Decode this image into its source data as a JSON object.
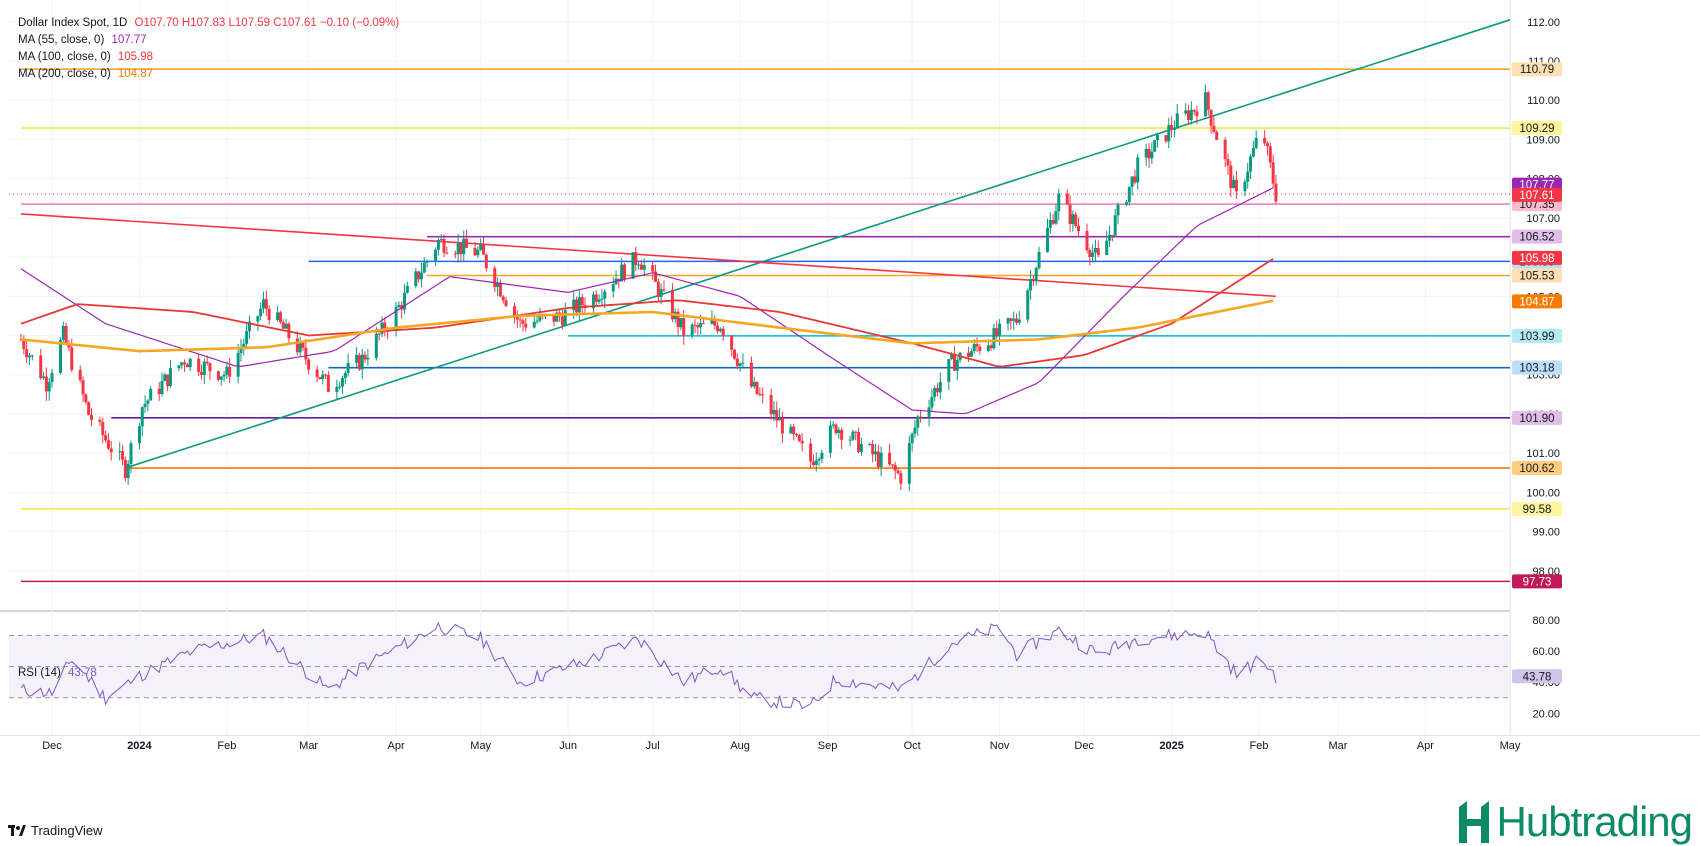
{
  "header": {
    "symbol": "Dollar Index Spot, 1D",
    "ohlc": "O107.70  H107.83  L107.59  C107.61  −0.10 (−0.09%)",
    "ma55_label": "MA (55, close, 0)",
    "ma55_value": "107.77",
    "ma100_label": "MA (100, close, 0)",
    "ma100_value": "105.98",
    "ma200_label": "MA (200, close, 0)",
    "ma200_value": "104.87",
    "rsi_label": "RSI (14)",
    "rsi_value": "43.78"
  },
  "colors": {
    "up": "#089981",
    "down": "#f23645",
    "ma55": "#9c27b0",
    "ma100": "#e53935",
    "ma200": "#f5a623",
    "rsi": "#7e57c2",
    "trend_up": "#0a9b7e",
    "trend_down": "#f23645",
    "brand": "#0d8a68"
  },
  "footer": {
    "tradingview": "TradingView",
    "brand": "Hubtrading"
  },
  "chart_data": {
    "type": "candlestick",
    "title": "Dollar Index Spot, 1D",
    "ylim": [
      97.0,
      112.3
    ],
    "y_ticks": [
      98.0,
      99.0,
      100.0,
      101.0,
      102.0,
      103.0,
      104.0,
      105.0,
      106.0,
      107.0,
      108.0,
      109.0,
      110.0,
      111.0,
      112.0
    ],
    "x_ticks": [
      "Dec",
      "2024",
      "Feb",
      "Mar",
      "Apr",
      "May",
      "Jun",
      "Jul",
      "Aug",
      "Sep",
      "Oct",
      "Nov",
      "Dec",
      "2025",
      "Feb",
      "Mar",
      "Apr",
      "May"
    ],
    "price_path": [
      [
        "2023-11-20",
        103.9
      ],
      [
        "2023-11-29",
        102.8
      ],
      [
        "2023-12-05",
        104.0
      ],
      [
        "2023-12-14",
        102.0
      ],
      [
        "2023-12-27",
        100.6
      ],
      [
        "2024-01-02",
        102.2
      ],
      [
        "2024-01-17",
        103.4
      ],
      [
        "2024-02-01",
        103.0
      ],
      [
        "2024-02-14",
        104.8
      ],
      [
        "2024-03-08",
        102.7
      ],
      [
        "2024-03-20",
        103.4
      ],
      [
        "2024-04-01",
        104.6
      ],
      [
        "2024-04-16",
        106.4
      ],
      [
        "2024-05-01",
        106.1
      ],
      [
        "2024-05-15",
        104.3
      ],
      [
        "2024-05-30",
        104.5
      ],
      [
        "2024-06-10",
        105.0
      ],
      [
        "2024-06-26",
        106.0
      ],
      [
        "2024-07-12",
        104.1
      ],
      [
        "2024-07-25",
        104.3
      ],
      [
        "2024-08-05",
        102.7
      ],
      [
        "2024-08-26",
        100.8
      ],
      [
        "2024-09-04",
        101.7
      ],
      [
        "2024-09-27",
        100.4
      ],
      [
        "2024-10-03",
        101.9
      ],
      [
        "2024-10-15",
        103.3
      ],
      [
        "2024-10-31",
        104.0
      ],
      [
        "2024-11-07",
        104.4
      ],
      [
        "2024-11-22",
        107.5
      ],
      [
        "2024-12-06",
        105.9
      ],
      [
        "2024-12-20",
        108.3
      ],
      [
        "2025-01-02",
        109.4
      ],
      [
        "2025-01-13",
        110.0
      ],
      [
        "2025-01-24",
        107.5
      ],
      [
        "2025-02-02",
        109.3
      ],
      [
        "2025-02-07",
        107.6
      ]
    ],
    "candles_by_date": [
      [
        "2025-02-07",
        107.7,
        107.83,
        107.59,
        107.61
      ]
    ],
    "moving_averages": [
      {
        "name": "MA (55, close, 0)",
        "last": 107.77,
        "points": [
          [
            "2023-11-20",
            105.7
          ],
          [
            "2023-12-20",
            104.3
          ],
          [
            "2024-02-05",
            103.2
          ],
          [
            "2024-03-10",
            103.6
          ],
          [
            "2024-04-20",
            105.5
          ],
          [
            "2024-06-01",
            105.1
          ],
          [
            "2024-07-01",
            105.6
          ],
          [
            "2024-08-01",
            105.0
          ],
          [
            "2024-09-01",
            103.5
          ],
          [
            "2024-10-01",
            102.1
          ],
          [
            "2024-10-20",
            102.0
          ],
          [
            "2024-11-15",
            102.8
          ],
          [
            "2024-12-15",
            105.0
          ],
          [
            "2025-01-10",
            106.8
          ],
          [
            "2025-02-07",
            107.8
          ]
        ]
      },
      {
        "name": "MA (100, close, 0)",
        "last": 105.98,
        "points": [
          [
            "2023-11-20",
            104.3
          ],
          [
            "2023-12-10",
            104.8
          ],
          [
            "2024-01-20",
            104.6
          ],
          [
            "2024-03-01",
            104.0
          ],
          [
            "2024-04-15",
            104.2
          ],
          [
            "2024-06-01",
            104.7
          ],
          [
            "2024-07-10",
            104.9
          ],
          [
            "2024-08-15",
            104.6
          ],
          [
            "2024-10-01",
            103.8
          ],
          [
            "2024-11-01",
            103.2
          ],
          [
            "2024-12-01",
            103.5
          ],
          [
            "2025-01-01",
            104.3
          ],
          [
            "2025-02-07",
            106.0
          ]
        ]
      },
      {
        "name": "MA (200, close, 0)",
        "last": 104.87,
        "points": [
          [
            "2023-11-20",
            103.9
          ],
          [
            "2024-01-01",
            103.6
          ],
          [
            "2024-02-15",
            103.7
          ],
          [
            "2024-04-01",
            104.2
          ],
          [
            "2024-05-15",
            104.5
          ],
          [
            "2024-07-01",
            104.6
          ],
          [
            "2024-08-15",
            104.2
          ],
          [
            "2024-10-01",
            103.8
          ],
          [
            "2024-11-15",
            103.9
          ],
          [
            "2024-12-20",
            104.2
          ],
          [
            "2025-02-07",
            104.9
          ]
        ]
      }
    ],
    "horizontal_levels": [
      {
        "value": 110.79,
        "color": "#f5a623",
        "label_color": "#ffe0b2",
        "text_color": "#131722",
        "start": "2023-11-20"
      },
      {
        "value": 109.29,
        "color": "#f2e94e",
        "label_color": "#fff59d",
        "text_color": "#131722",
        "start": "2023-11-20"
      },
      {
        "value": 107.35,
        "color": "#e879b6",
        "label_color": "#f8bbd0",
        "text_color": "#131722",
        "start": "2023-11-20"
      },
      {
        "value": 106.52,
        "color": "#9c27b0",
        "label_color": "#e1bee7",
        "text_color": "#131722",
        "start": "2024-04-12"
      },
      {
        "value": 105.89,
        "color": "#2962ff",
        "label_color": "#bbdefb",
        "text_color": "#131722",
        "start": "2024-03-01"
      },
      {
        "value": 105.53,
        "color": "#f5a623",
        "label_color": "#ffe0b2",
        "text_color": "#131722",
        "start": "2024-04-12"
      },
      {
        "value": 103.99,
        "color": "#00bcd4",
        "label_color": "#b2ebf2",
        "text_color": "#131722",
        "start": "2024-06-01"
      },
      {
        "value": 103.18,
        "color": "#1565c0",
        "label_color": "#bbdefb",
        "text_color": "#131722",
        "start": "2024-03-08"
      },
      {
        "value": 101.9,
        "color": "#6a1b9a",
        "label_color": "#e1bee7",
        "text_color": "#131722",
        "start": "2023-12-22"
      },
      {
        "value": 100.62,
        "color": "#f57c00",
        "label_color": "#ffcc80",
        "text_color": "#131722",
        "start": "2023-12-28"
      },
      {
        "value": 99.58,
        "color": "#f2e94e",
        "label_color": "#fff59d",
        "text_color": "#131722",
        "start": "2023-11-20"
      },
      {
        "value": 97.73,
        "color": "#c2185b",
        "label_color": "#c2185b",
        "text_color": "#ffffff",
        "start": "2023-11-20"
      }
    ],
    "price_tags": [
      {
        "value": 107.77,
        "color": "#9c27b0",
        "text_color": "#ffffff"
      },
      {
        "value": 107.61,
        "color": "#f23645",
        "text_color": "#ffffff"
      },
      {
        "value": 105.98,
        "color": "#f23645",
        "text_color": "#ffffff"
      },
      {
        "value": 104.87,
        "color": "#f57c00",
        "text_color": "#ffffff"
      }
    ],
    "trendlines": [
      {
        "name": "ascending",
        "from": [
          "2023-12-27",
          100.62
        ],
        "to": [
          "2025-05-01",
          112.05
        ]
      },
      {
        "name": "descending",
        "from": [
          "2023-11-20",
          107.1
        ],
        "to": [
          "2025-02-07",
          105.0
        ]
      }
    ],
    "rsi": {
      "name": "RSI (14)",
      "last": 43.78,
      "ylim": [
        17,
        85
      ],
      "y_ticks": [
        20.0,
        40.0,
        60.0,
        80.0
      ],
      "bands": [
        30,
        50,
        70
      ],
      "points": [
        [
          "2023-11-20",
          35
        ],
        [
          "2023-12-01",
          33
        ],
        [
          "2023-12-08",
          55
        ],
        [
          "2023-12-20",
          30
        ],
        [
          "2024-01-02",
          45
        ],
        [
          "2024-01-20",
          60
        ],
        [
          "2024-02-14",
          70
        ],
        [
          "2024-03-08",
          35
        ],
        [
          "2024-03-20",
          50
        ],
        [
          "2024-04-16",
          76
        ],
        [
          "2024-05-01",
          68
        ],
        [
          "2024-05-15",
          40
        ],
        [
          "2024-06-10",
          55
        ],
        [
          "2024-06-26",
          68
        ],
        [
          "2024-07-12",
          40
        ],
        [
          "2024-07-25",
          50
        ],
        [
          "2024-08-05",
          30
        ],
        [
          "2024-08-26",
          24
        ],
        [
          "2024-09-04",
          42
        ],
        [
          "2024-09-27",
          35
        ],
        [
          "2024-10-15",
          65
        ],
        [
          "2024-11-01",
          75
        ],
        [
          "2024-11-07",
          58
        ],
        [
          "2024-11-22",
          73
        ],
        [
          "2024-12-06",
          58
        ],
        [
          "2024-12-20",
          68
        ],
        [
          "2025-01-13",
          72
        ],
        [
          "2025-01-24",
          45
        ],
        [
          "2025-02-02",
          55
        ],
        [
          "2025-02-07",
          43.78
        ]
      ]
    }
  }
}
